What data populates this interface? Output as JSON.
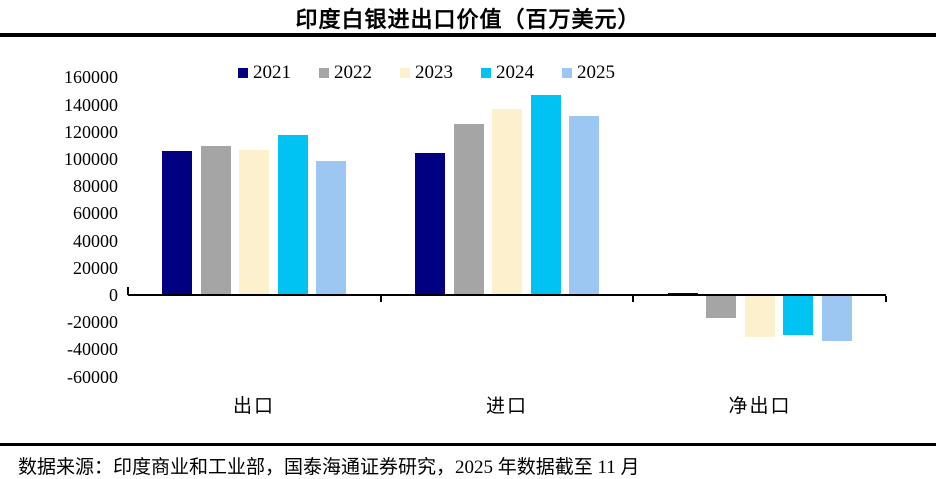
{
  "title": "印度白银进出口价值（百万美元）",
  "source_note": "数据来源：印度商业和工业部，国泰海通证券研究，2025 年数据截至 11 月",
  "chart_data": {
    "type": "bar",
    "title": "印度白银进出口价值（百万美元）",
    "categories": [
      "出口",
      "进口",
      "净出口"
    ],
    "series": [
      {
        "name": "2021",
        "color": "#000080",
        "values": [
          105000,
          104000,
          1000
        ]
      },
      {
        "name": "2022",
        "color": "#A5A5A5",
        "values": [
          109000,
          125000,
          -16000
        ]
      },
      {
        "name": "2023",
        "color": "#FDF0CC",
        "values": [
          106000,
          136000,
          -30000
        ]
      },
      {
        "name": "2024",
        "color": "#00C3F4",
        "values": [
          117000,
          146000,
          -29000
        ]
      },
      {
        "name": "2025",
        "color": "#9CC7F2",
        "values": [
          98000,
          131000,
          -33000
        ]
      }
    ],
    "xlabel": "",
    "ylabel": "",
    "ylim": [
      -60000,
      160000
    ],
    "ytick_step": 20000,
    "ytick_labels": [
      "160000",
      "140000",
      "120000",
      "100000",
      "80000",
      "60000",
      "40000",
      "20000",
      "0",
      "-20000",
      "-40000",
      "-60000"
    ],
    "grid": false,
    "legend_position": "top"
  }
}
